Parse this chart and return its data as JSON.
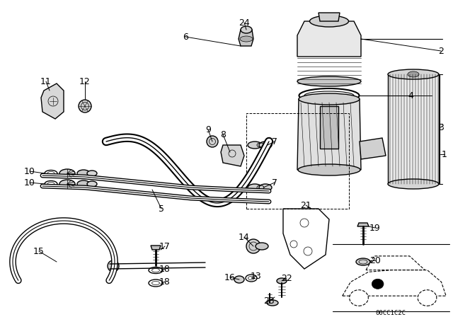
{
  "bg_color": "#ffffff",
  "line_color": "#000000",
  "diagram_code_text": "00CC1C2C"
}
